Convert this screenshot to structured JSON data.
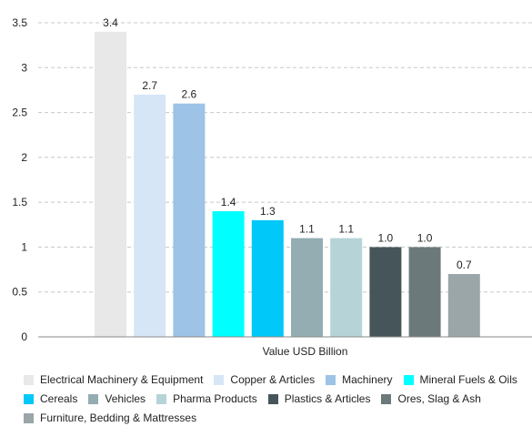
{
  "chart_data": {
    "type": "bar",
    "xlabel": "Value USD Billion",
    "ylabel": "",
    "ylim": [
      0,
      3.5
    ],
    "yticks": [
      0,
      0.5,
      1,
      1.5,
      2,
      2.5,
      3,
      3.5
    ],
    "ytick_labels": [
      "0",
      "0.5",
      "1",
      "1.5",
      "2",
      "2.5",
      "3",
      "3.5"
    ],
    "grid": true,
    "legend_position": "bottom",
    "series": [
      {
        "name": "Electrical Machinery & Equipment",
        "value": 3.4,
        "label": "3.4",
        "color": "#e8e8e8"
      },
      {
        "name": "Copper & Articles",
        "value": 2.7,
        "label": "2.7",
        "color": "#d6e6f7"
      },
      {
        "name": "Machinery",
        "value": 2.6,
        "label": "2.6",
        "color": "#9dc3e6"
      },
      {
        "name": "Mineral Fuels & Oils",
        "value": 1.4,
        "label": "1.4",
        "color": "#00ffff"
      },
      {
        "name": "Cereals",
        "value": 1.3,
        "label": "1.3",
        "color": "#00c8f8"
      },
      {
        "name": "Vehicles",
        "value": 1.1,
        "label": "1.1",
        "color": "#93adb2"
      },
      {
        "name": "Pharma Products",
        "value": 1.1,
        "label": "1.1",
        "color": "#b6d4d8"
      },
      {
        "name": "Plastics & Articles",
        "value": 1.0,
        "label": "1.0",
        "color": "#465559"
      },
      {
        "name": "Ores, Slag & Ash",
        "value": 1.0,
        "label": "1.0",
        "color": "#6b797a"
      },
      {
        "name": "Furniture, Bedding & Mattresses",
        "value": 0.7,
        "label": "0.7",
        "color": "#9aa6a8"
      }
    ]
  }
}
